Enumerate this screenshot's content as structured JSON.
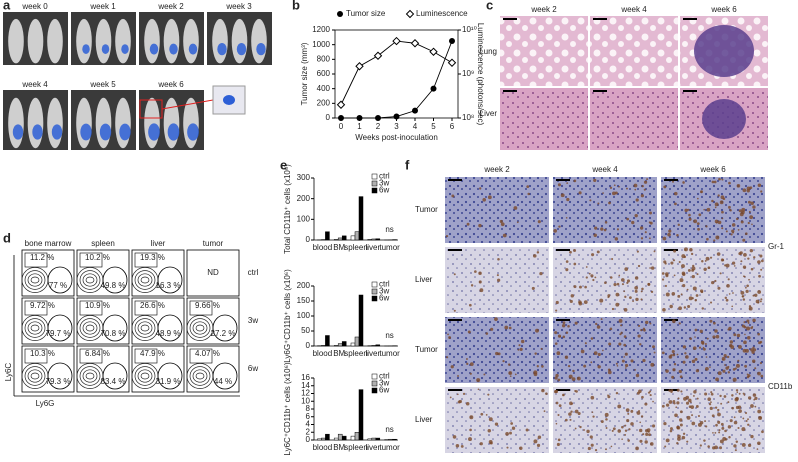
{
  "panels": {
    "a": {
      "label": "a",
      "weeks": [
        "week 0",
        "week 1",
        "week 2",
        "week 3",
        "week 4",
        "week 5",
        "week 6"
      ]
    },
    "b": {
      "label": "b"
    },
    "c": {
      "label": "c",
      "weeks": [
        "week 2",
        "week 4",
        "week 6"
      ],
      "rows": [
        "Lung",
        "Liver"
      ]
    },
    "d": {
      "label": "d",
      "columns": [
        "bone marrow",
        "spleen",
        "liver",
        "tumor"
      ],
      "rows": [
        "ctrl",
        "3w",
        "6w"
      ],
      "cells": [
        [
          [
            "11.2 %",
            "77 %"
          ],
          [
            "10.2 %",
            "49.8 %"
          ],
          [
            "19.3 %",
            "16.3 %"
          ],
          [
            "ND"
          ]
        ],
        [
          [
            "9.72 %",
            "79.7 %"
          ],
          [
            "10.9 %",
            "70.8 %"
          ],
          [
            "26.6 %",
            "48.9 %"
          ],
          [
            "9.66 %",
            "27.2 %"
          ]
        ],
        [
          [
            "10.3 %",
            "79.3 %"
          ],
          [
            "6.84 %",
            "83.4 %"
          ],
          [
            "47.9 %",
            "31.9 %"
          ],
          [
            "4.07 %",
            "44 %"
          ]
        ]
      ],
      "y_label": "Ly6C",
      "x_label": "Ly6G"
    },
    "e": {
      "label": "e"
    },
    "f": {
      "label": "f",
      "weeks": [
        "week 2",
        "week 4",
        "week 6"
      ],
      "rows": [
        "Tumor",
        "Liver",
        "Tumor",
        "Liver"
      ],
      "stains": [
        "Gr-1",
        "CD11b"
      ]
    }
  },
  "chart_data": [
    {
      "type": "line",
      "x": [
        0,
        1,
        2,
        3,
        4,
        5,
        6
      ],
      "xlabel": "Weeks post-inoculation",
      "ylabel": "Tumor size (mm³)",
      "y2label": "Luminescence (photons/sec)",
      "series": [
        {
          "name": "Tumor size",
          "color": "#000000",
          "marker": "filled-circle",
          "values": [
            0,
            0,
            0,
            20,
            100,
            400,
            1050
          ]
        },
        {
          "name": "Luminescence",
          "color": "#000000",
          "marker": "open-diamond",
          "axis": "y2",
          "values": [
            200000000,
            1500000000,
            2600000000,
            5600000000,
            5000000000,
            3200000000,
            1800000000
          ]
        }
      ],
      "xlim": [
        0,
        6
      ],
      "xticks": [
        0,
        1,
        2,
        3,
        4,
        5,
        6
      ],
      "ylim": [
        0,
        1200
      ],
      "yticks": [
        0,
        200,
        400,
        600,
        800,
        1000,
        1200
      ],
      "y2lim": [
        100000000,
        10000000000
      ],
      "y2scale": "log",
      "y2ticks": [
        {
          "value": 100000000,
          "label": "10⁸"
        },
        {
          "value": 1000000000,
          "label": "10⁹"
        },
        {
          "value": 10000000000,
          "label": "10¹⁰"
        }
      ]
    },
    {
      "type": "bar",
      "ylabel": "Total CD11b⁺ cells (x10⁶)",
      "categories": [
        "blood",
        "BM",
        "spleen",
        "liver",
        "tumor"
      ],
      "series": [
        {
          "name": "ctrl",
          "color": "#ffffff",
          "values": [
            1,
            3,
            20,
            3,
            0.5
          ]
        },
        {
          "name": "3w",
          "color": "#b0b0b0",
          "values": [
            2,
            10,
            40,
            5,
            1
          ]
        },
        {
          "name": "6w",
          "color": "#000000",
          "values": [
            40,
            20,
            210,
            6,
            2
          ]
        }
      ],
      "ylim": [
        0,
        300
      ],
      "yticks": [
        0,
        100,
        200,
        300
      ],
      "annotation": "ns"
    },
    {
      "type": "bar",
      "ylabel": "Ly6G⁺CD11b⁺ cells (x10⁶)",
      "categories": [
        "blood",
        "BM",
        "spleen",
        "liver",
        "tumor"
      ],
      "series": [
        {
          "name": "ctrl",
          "color": "#ffffff",
          "values": [
            1,
            2,
            10,
            1,
            0.3
          ]
        },
        {
          "name": "3w",
          "color": "#b0b0b0",
          "values": [
            2,
            8,
            30,
            2,
            0.5
          ]
        },
        {
          "name": "6w",
          "color": "#000000",
          "values": [
            35,
            15,
            170,
            4,
            1
          ]
        }
      ],
      "ylim": [
        0,
        200
      ],
      "yticks": [
        0,
        50,
        100,
        150,
        200
      ],
      "annotation": "ns"
    },
    {
      "type": "bar",
      "ylabel": "Ly6C⁺CD11b⁺ cells (x10⁶)",
      "categories": [
        "blood",
        "BM",
        "spleen",
        "liver",
        "tumor"
      ],
      "series": [
        {
          "name": "ctrl",
          "color": "#ffffff",
          "values": [
            0.3,
            0.5,
            1,
            0.3,
            0.1
          ]
        },
        {
          "name": "3w",
          "color": "#b0b0b0",
          "values": [
            0.5,
            1.5,
            2,
            0.5,
            0.2
          ]
        },
        {
          "name": "6w",
          "color": "#000000",
          "values": [
            1.5,
            1,
            13,
            0.5,
            0.2
          ]
        }
      ],
      "ylim": [
        0,
        16
      ],
      "yticks": [
        0,
        2,
        4,
        6,
        8,
        10,
        12,
        14,
        16
      ],
      "annotation": "ns"
    }
  ]
}
